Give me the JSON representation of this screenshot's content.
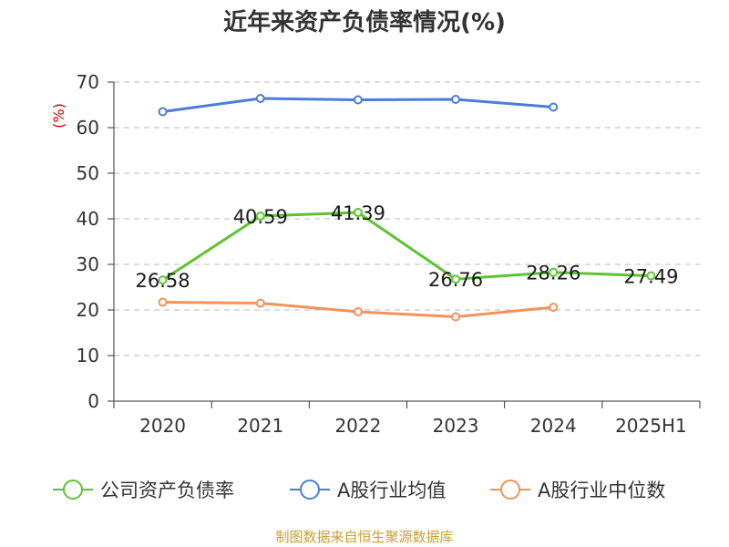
{
  "chart_data": {
    "type": "line",
    "title": "近年来资产负债率情况(%)",
    "ylabel": "(%)",
    "xlabel": "",
    "categories": [
      "2020",
      "2021",
      "2022",
      "2023",
      "2024",
      "2025H1"
    ],
    "ylim": [
      0,
      70
    ],
    "yticks": [
      0,
      10,
      20,
      30,
      40,
      50,
      60,
      70
    ],
    "grid": true,
    "legend_position": "bottom",
    "series": [
      {
        "name": "公司资产负债率",
        "color": "#5cc431",
        "values": [
          26.58,
          40.59,
          41.39,
          26.76,
          28.26,
          27.49
        ],
        "labels": [
          "26.58",
          "40.59",
          "41.39",
          "26.76",
          "28.26",
          "27.49"
        ]
      },
      {
        "name": "A股行业均值",
        "color": "#4a7dd6",
        "values": [
          63.5,
          66.4,
          66.1,
          66.2,
          64.5,
          null
        ]
      },
      {
        "name": "A股行业中位数",
        "color": "#f5925a",
        "values": [
          21.7,
          21.5,
          19.6,
          18.5,
          20.6,
          null
        ]
      }
    ]
  },
  "source": "制图数据来自恒生聚源数据库"
}
